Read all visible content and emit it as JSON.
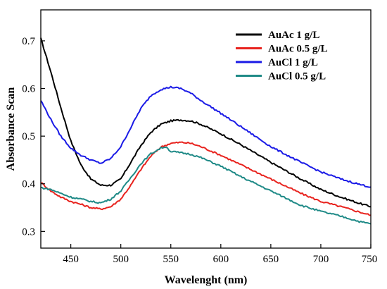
{
  "chart_data": {
    "type": "line",
    "title": "",
    "xlabel": "Wavelenght (nm)",
    "ylabel": "Absorbance Scan",
    "xlim": [
      420,
      750
    ],
    "ylim": [
      0.265,
      0.765
    ],
    "xticks": [
      450,
      500,
      550,
      600,
      650,
      700,
      750
    ],
    "yticks": [
      0.3,
      0.4,
      0.5,
      0.6,
      0.7
    ],
    "xtick_labels": [
      "450",
      "500",
      "550",
      "600",
      "650",
      "700",
      "750"
    ],
    "ytick_labels": [
      "0.3",
      "0.4",
      "0.5",
      "0.6",
      "0.7"
    ],
    "grid": false,
    "legend_position": "top-right",
    "series": [
      {
        "name": "AuAc 1 g/L",
        "color": "#000000",
        "x": [
          420,
          430,
          440,
          450,
          460,
          470,
          480,
          490,
          500,
          510,
          520,
          530,
          540,
          550,
          560,
          570,
          580,
          600,
          620,
          650,
          680,
          700,
          720,
          740,
          750
        ],
        "y": [
          0.705,
          0.635,
          0.56,
          0.49,
          0.44,
          0.41,
          0.397,
          0.397,
          0.41,
          0.445,
          0.48,
          0.508,
          0.525,
          0.532,
          0.534,
          0.532,
          0.525,
          0.505,
          0.482,
          0.445,
          0.41,
          0.388,
          0.372,
          0.358,
          0.352
        ]
      },
      {
        "name": "AuAc 0.5 g/L",
        "color": "#e8231e",
        "x": [
          420,
          430,
          440,
          450,
          460,
          470,
          480,
          490,
          500,
          510,
          520,
          530,
          540,
          550,
          560,
          570,
          580,
          600,
          620,
          650,
          680,
          700,
          720,
          740,
          750
        ],
        "y": [
          0.403,
          0.385,
          0.372,
          0.363,
          0.357,
          0.35,
          0.347,
          0.352,
          0.368,
          0.397,
          0.43,
          0.458,
          0.477,
          0.485,
          0.487,
          0.485,
          0.478,
          0.46,
          0.44,
          0.41,
          0.38,
          0.363,
          0.352,
          0.34,
          0.334
        ]
      },
      {
        "name": "AuCl 1 g/L",
        "color": "#1a1ae6",
        "x": [
          420,
          430,
          440,
          450,
          460,
          470,
          480,
          490,
          500,
          510,
          520,
          530,
          540,
          550,
          560,
          570,
          580,
          600,
          620,
          650,
          680,
          700,
          720,
          740,
          750
        ],
        "y": [
          0.575,
          0.535,
          0.5,
          0.475,
          0.46,
          0.45,
          0.443,
          0.453,
          0.478,
          0.518,
          0.558,
          0.585,
          0.598,
          0.603,
          0.6,
          0.59,
          0.575,
          0.548,
          0.52,
          0.478,
          0.445,
          0.425,
          0.41,
          0.398,
          0.393
        ]
      },
      {
        "name": "AuCl 0.5 g/L",
        "color": "#1f8a87",
        "x": [
          420,
          430,
          440,
          450,
          460,
          470,
          480,
          490,
          500,
          510,
          520,
          530,
          540,
          545,
          550,
          560,
          570,
          580,
          600,
          620,
          650,
          680,
          700,
          720,
          740,
          750
        ],
        "y": [
          0.392,
          0.388,
          0.38,
          0.372,
          0.368,
          0.363,
          0.36,
          0.368,
          0.385,
          0.413,
          0.442,
          0.463,
          0.475,
          0.478,
          0.468,
          0.465,
          0.462,
          0.455,
          0.437,
          0.415,
          0.385,
          0.355,
          0.342,
          0.332,
          0.32,
          0.316
        ]
      }
    ]
  }
}
